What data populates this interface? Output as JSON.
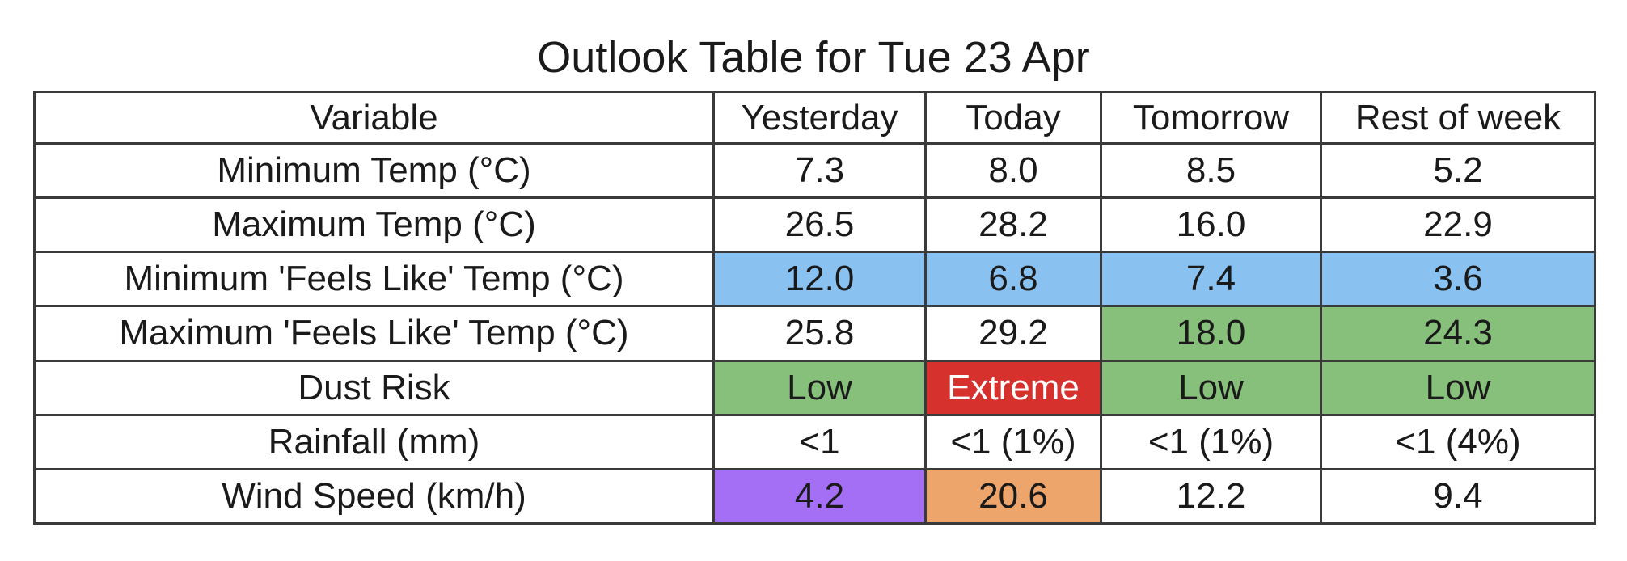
{
  "chart_data": {
    "type": "table",
    "title": "Outlook Table for Tue 23 Apr",
    "columns": [
      "Variable",
      "Yesterday",
      "Today",
      "Tomorrow",
      "Rest of week"
    ],
    "rows": [
      {
        "label": "Minimum Temp (°C)",
        "values": [
          "7.3",
          "8.0",
          "8.5",
          "5.2"
        ],
        "colors": [
          "#ffffff",
          "#ffffff",
          "#ffffff",
          "#ffffff"
        ],
        "text_colors": [
          "#1a1a1a",
          "#1a1a1a",
          "#1a1a1a",
          "#1a1a1a"
        ]
      },
      {
        "label": "Maximum Temp (°C)",
        "values": [
          "26.5",
          "28.2",
          "16.0",
          "22.9"
        ],
        "colors": [
          "#ffffff",
          "#ffffff",
          "#ffffff",
          "#ffffff"
        ],
        "text_colors": [
          "#1a1a1a",
          "#1a1a1a",
          "#1a1a1a",
          "#1a1a1a"
        ]
      },
      {
        "label": "Minimum 'Feels Like' Temp (°C)",
        "values": [
          "12.0",
          "6.8",
          "7.4",
          "3.6"
        ],
        "colors": [
          "#89c1f1",
          "#89c1f1",
          "#89c1f1",
          "#89c1f1"
        ],
        "text_colors": [
          "#1a1a1a",
          "#1a1a1a",
          "#1a1a1a",
          "#1a1a1a"
        ]
      },
      {
        "label": "Maximum 'Feels Like' Temp (°C)",
        "values": [
          "25.8",
          "29.2",
          "18.0",
          "24.3"
        ],
        "colors": [
          "#ffffff",
          "#ffffff",
          "#87c07a",
          "#87c07a"
        ],
        "text_colors": [
          "#1a1a1a",
          "#1a1a1a",
          "#1a1a1a",
          "#1a1a1a"
        ]
      },
      {
        "label": "Dust Risk",
        "values": [
          "Low",
          "Extreme",
          "Low",
          "Low"
        ],
        "colors": [
          "#87c07a",
          "#d7312e",
          "#87c07a",
          "#87c07a"
        ],
        "text_colors": [
          "#1a1a1a",
          "#ffffff",
          "#1a1a1a",
          "#1a1a1a"
        ]
      },
      {
        "label": "Rainfall (mm)",
        "values": [
          "<1",
          "<1 (1%)",
          "<1 (1%)",
          "<1 (4%)"
        ],
        "colors": [
          "#ffffff",
          "#ffffff",
          "#ffffff",
          "#ffffff"
        ],
        "text_colors": [
          "#1a1a1a",
          "#1a1a1a",
          "#1a1a1a",
          "#1a1a1a"
        ]
      },
      {
        "label": "Wind Speed (km/h)",
        "values": [
          "4.2",
          "20.6",
          "12.2",
          "9.4"
        ],
        "colors": [
          "#a46ff5",
          "#eda56c",
          "#ffffff",
          "#ffffff"
        ],
        "text_colors": [
          "#1a1a1a",
          "#1a1a1a",
          "#1a1a1a",
          "#1a1a1a"
        ]
      }
    ]
  }
}
